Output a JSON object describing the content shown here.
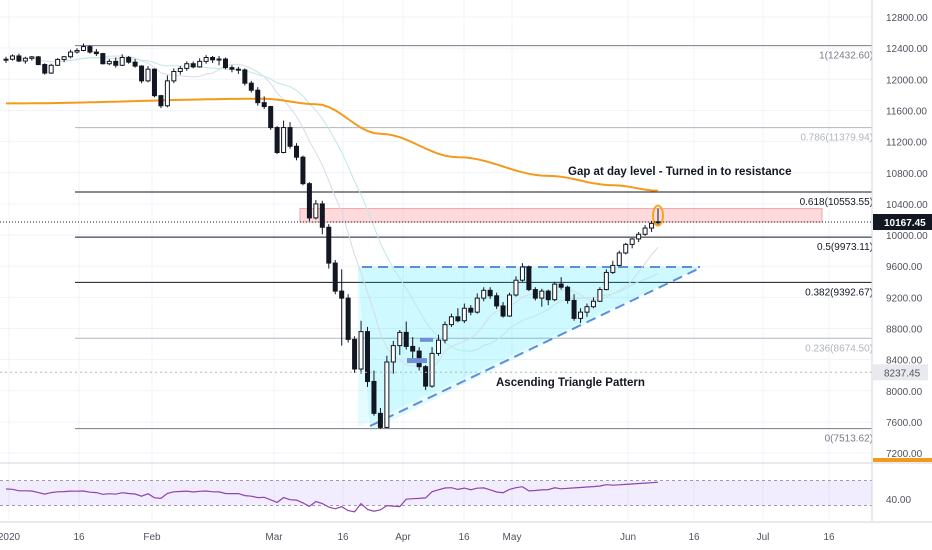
{
  "chart_data": {
    "type": "candlestick",
    "y_ticks": [
      "12800.00",
      "12400.00",
      "12000.00",
      "11600.00",
      "11200.00",
      "10800.00",
      "10400.00",
      "10000.00",
      "9600.00",
      "9200.00",
      "8800.00",
      "8400.00",
      "8000.00",
      "7600.00",
      "7200.00"
    ],
    "x_ticks": [
      "2020",
      "16",
      "Feb",
      "Mar",
      "16",
      "Apr",
      "16",
      "May",
      "Jun",
      "16",
      "Jul",
      "16"
    ],
    "price_labels": {
      "last": "10167.45",
      "marker": "8237.45",
      "last_value": 10167.45,
      "marker_value": 8237.45
    },
    "fib_levels": [
      {
        "label": "1(12432.60)",
        "value": 12432.6,
        "color": "#787b86"
      },
      {
        "label": "0.786(11379.94)",
        "value": 11379.94,
        "color": "#b2b5be"
      },
      {
        "label": "0.618(10553.55)",
        "value": 10553.55,
        "color": "#131722"
      },
      {
        "label": "0.5(9973.11)",
        "value": 9973.11,
        "color": "#131722"
      },
      {
        "label": "0.382(9392.67)",
        "value": 9392.67,
        "color": "#131722"
      },
      {
        "label": "0.236(8674.50)",
        "value": 8674.5,
        "color": "#b2b5be"
      },
      {
        "label": "0(7513.62)",
        "value": 7513.62,
        "color": "#787b86"
      }
    ],
    "annotations": {
      "gap": "Gap at day level - Turned in to resistance",
      "triangle": "Ascending Triangle Pattern"
    },
    "gap_zone": [
      10167.45,
      10340
    ],
    "rsi": {
      "tick": "40.00",
      "upper": 70,
      "lower": 30,
      "range": [
        5,
        95
      ]
    },
    "candles": [
      [
        12254,
        12290,
        12210,
        12258
      ],
      [
        12258,
        12320,
        12240,
        12300
      ],
      [
        12300,
        12330,
        12220,
        12235
      ],
      [
        12235,
        12290,
        12200,
        12270
      ],
      [
        12270,
        12300,
        12240,
        12288
      ],
      [
        12288,
        12300,
        12180,
        12190
      ],
      [
        12190,
        12205,
        12060,
        12080
      ],
      [
        12080,
        12200,
        12070,
        12180
      ],
      [
        12180,
        12270,
        12170,
        12255
      ],
      [
        12255,
        12300,
        12220,
        12290
      ],
      [
        12290,
        12380,
        12270,
        12350
      ],
      [
        12350,
        12400,
        12330,
        12370
      ],
      [
        12370,
        12460,
        12360,
        12420
      ],
      [
        12420,
        12440,
        12330,
        12350
      ],
      [
        12350,
        12390,
        12300,
        12330
      ],
      [
        12330,
        12340,
        12190,
        12200
      ],
      [
        12200,
        12260,
        12180,
        12230
      ],
      [
        12230,
        12280,
        12150,
        12180
      ],
      [
        12180,
        12320,
        12170,
        12280
      ],
      [
        12280,
        12300,
        12200,
        12220
      ],
      [
        12220,
        12260,
        12150,
        12170
      ],
      [
        12170,
        12180,
        11950,
        11980
      ],
      [
        11980,
        12170,
        11960,
        12130
      ],
      [
        12130,
        12140,
        11770,
        11790
      ],
      [
        11790,
        11800,
        11630,
        11660
      ],
      [
        11660,
        12050,
        11640,
        11980
      ],
      [
        11980,
        12140,
        11950,
        12100
      ],
      [
        12100,
        12170,
        12060,
        12140
      ],
      [
        12140,
        12230,
        12110,
        12200
      ],
      [
        12200,
        12230,
        12140,
        12160
      ],
      [
        12160,
        12270,
        12150,
        12230
      ],
      [
        12230,
        12310,
        12200,
        12280
      ],
      [
        12280,
        12300,
        12210,
        12250
      ],
      [
        12250,
        12300,
        12180,
        12260
      ],
      [
        12260,
        12280,
        12130,
        12150
      ],
      [
        12150,
        12180,
        12090,
        12130
      ],
      [
        12130,
        12160,
        12070,
        12120
      ],
      [
        12120,
        12140,
        11920,
        11950
      ],
      [
        11950,
        11980,
        11830,
        11860
      ],
      [
        11860,
        11900,
        11660,
        11700
      ],
      [
        11700,
        11780,
        11620,
        11650
      ],
      [
        11650,
        11660,
        11350,
        11380
      ],
      [
        11380,
        11400,
        11040,
        11060
      ],
      [
        11060,
        11470,
        11050,
        11380
      ],
      [
        11380,
        11450,
        11110,
        11140
      ],
      [
        11140,
        11180,
        10960,
        11000
      ],
      [
        11000,
        11020,
        10640,
        10660
      ],
      [
        10660,
        10680,
        10180,
        10220
      ],
      [
        10220,
        10450,
        10200,
        10400
      ],
      [
        10400,
        10440,
        10010,
        10100
      ],
      [
        10100,
        10140,
        9570,
        9640
      ],
      [
        9640,
        9680,
        9240,
        9280
      ],
      [
        9280,
        9560,
        8580,
        9190
      ],
      [
        9190,
        9240,
        8620,
        8660
      ],
      [
        8660,
        8700,
        8230,
        8280
      ],
      [
        8280,
        8900,
        8220,
        8760
      ],
      [
        8760,
        8820,
        8050,
        8120
      ],
      [
        8120,
        8260,
        7680,
        7710
      ],
      [
        7710,
        7780,
        7510,
        7530
      ],
      [
        7530,
        8450,
        7520,
        8370
      ],
      [
        8370,
        8640,
        8220,
        8580
      ],
      [
        8580,
        8780,
        8460,
        8750
      ],
      [
        8750,
        8890,
        8530,
        8570
      ],
      [
        8570,
        8690,
        8420,
        8510
      ],
      [
        8510,
        8560,
        8260,
        8310
      ],
      [
        8310,
        8330,
        8010,
        8060
      ],
      [
        8060,
        8560,
        8040,
        8480
      ],
      [
        8480,
        8720,
        8450,
        8650
      ],
      [
        8650,
        8890,
        8610,
        8850
      ],
      [
        8850,
        8990,
        8820,
        8950
      ],
      [
        8950,
        9060,
        8880,
        8900
      ],
      [
        8900,
        9120,
        8870,
        9060
      ],
      [
        9060,
        9100,
        8970,
        9010
      ],
      [
        9010,
        9250,
        8990,
        9190
      ],
      [
        9190,
        9330,
        9150,
        9290
      ],
      [
        9290,
        9330,
        9180,
        9220
      ],
      [
        9220,
        9260,
        9050,
        9090
      ],
      [
        9090,
        9140,
        8940,
        8960
      ],
      [
        8960,
        9260,
        8950,
        9230
      ],
      [
        9230,
        9470,
        9210,
        9420
      ],
      [
        9420,
        9640,
        9400,
        9590
      ],
      [
        9590,
        9610,
        9280,
        9300
      ],
      [
        9300,
        9330,
        9160,
        9190
      ],
      [
        9190,
        9310,
        9080,
        9280
      ],
      [
        9280,
        9300,
        9100,
        9170
      ],
      [
        9170,
        9400,
        9150,
        9370
      ],
      [
        9370,
        9460,
        9300,
        9330
      ],
      [
        9330,
        9350,
        9120,
        9160
      ],
      [
        9160,
        9240,
        8900,
        8930
      ],
      [
        8930,
        9060,
        8870,
        9010
      ],
      [
        9010,
        9120,
        8950,
        9080
      ],
      [
        9080,
        9200,
        9060,
        9150
      ],
      [
        9150,
        9330,
        9140,
        9300
      ],
      [
        9300,
        9560,
        9290,
        9520
      ],
      [
        9520,
        9670,
        9500,
        9610
      ],
      [
        9610,
        9800,
        9600,
        9770
      ],
      [
        9770,
        9900,
        9750,
        9880
      ],
      [
        9880,
        9960,
        9830,
        9950
      ],
      [
        9950,
        10040,
        9910,
        10010
      ],
      [
        10010,
        10130,
        9990,
        10090
      ],
      [
        10090,
        10180,
        10040,
        10150
      ],
      [
        10170,
        10340,
        10110,
        10167
      ]
    ]
  }
}
